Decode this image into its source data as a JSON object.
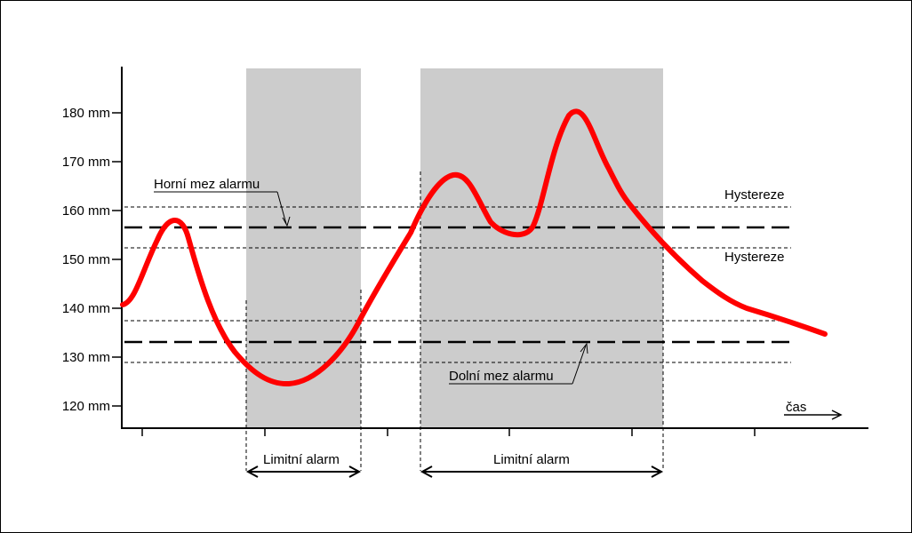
{
  "diagram": {
    "y_unit": "mm",
    "y_ticks": [
      {
        "value": 120,
        "label": "120 mm"
      },
      {
        "value": 130,
        "label": "130 mm"
      },
      {
        "value": 140,
        "label": "140 mm"
      },
      {
        "value": 150,
        "label": "150 mm"
      },
      {
        "value": 160,
        "label": "160 mm"
      },
      {
        "value": 170,
        "label": "170 mm"
      },
      {
        "value": 180,
        "label": "180 mm"
      }
    ],
    "x_axis_label": "čas",
    "upper_limit": {
      "label": "Horní mez alarmu",
      "value": 156.5,
      "hysteresis_high": 160.5,
      "hysteresis_low": 152.3
    },
    "lower_limit": {
      "label": "Dolní mez alarmu",
      "value": 133,
      "hysteresis_high": 137.4,
      "hysteresis_low": 128.7
    },
    "hysteresis_label": "Hystereze",
    "alarm_label_1": "Limitní alarm",
    "alarm_label_2": "Limitní alarm",
    "colors": {
      "signal": "#ff0000",
      "alarm_band": "#cccccc",
      "lines": "#000000"
    }
  }
}
